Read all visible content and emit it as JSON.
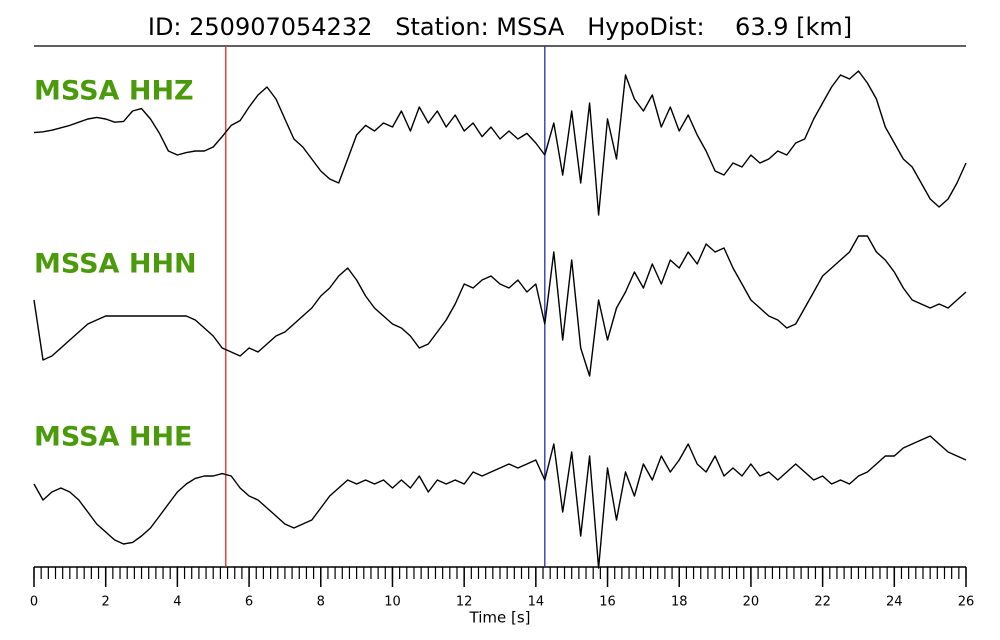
{
  "chart_data": {
    "type": "line",
    "title": "ID: 250907054232   Station: MSSA   HypoDist:    63.9 [km]",
    "xlabel": "Time [s]",
    "xlim": [
      0,
      26
    ],
    "xticks": [
      0,
      2,
      4,
      6,
      8,
      10,
      12,
      14,
      16,
      18,
      20,
      22,
      24,
      26
    ],
    "minor_tick_step": 0.2,
    "ylim": [
      -1,
      1
    ],
    "label_color": "#4a9a0c",
    "markers": [
      {
        "x": 5.35,
        "color": "#e8281e"
      },
      {
        "x": 14.25,
        "color": "#2a2ab4"
      }
    ],
    "x": [
      0,
      0.25,
      0.5,
      0.75,
      1,
      1.25,
      1.5,
      1.75,
      2,
      2.25,
      2.5,
      2.75,
      3,
      3.25,
      3.5,
      3.75,
      4,
      4.25,
      4.5,
      4.75,
      5,
      5.25,
      5.5,
      5.75,
      6,
      6.25,
      6.5,
      6.75,
      7,
      7.25,
      7.5,
      7.75,
      8,
      8.25,
      8.5,
      8.75,
      9,
      9.25,
      9.5,
      9.75,
      10,
      10.25,
      10.5,
      10.75,
      11,
      11.25,
      11.5,
      11.75,
      12,
      12.25,
      12.5,
      12.75,
      13,
      13.25,
      13.5,
      13.75,
      14,
      14.25,
      14.5,
      14.75,
      15,
      15.25,
      15.5,
      15.75,
      16,
      16.25,
      16.5,
      16.75,
      17,
      17.25,
      17.5,
      17.75,
      18,
      18.25,
      18.5,
      18.75,
      19,
      19.25,
      19.5,
      19.75,
      20,
      20.25,
      20.5,
      20.75,
      21,
      21.25,
      21.5,
      21.75,
      22,
      22.25,
      22.5,
      22.75,
      23,
      23.25,
      23.5,
      23.75,
      24,
      24.25,
      24.5,
      24.75,
      25,
      25.25,
      25.5,
      25.75,
      26
    ],
    "series": [
      {
        "name": "MSSA HHZ",
        "color": "#000000",
        "values": [
          0.03,
          0.04,
          0.06,
          0.09,
          0.12,
          0.16,
          0.2,
          0.22,
          0.2,
          0.16,
          0.17,
          0.3,
          0.33,
          0.2,
          0.02,
          -0.2,
          -0.25,
          -0.22,
          -0.2,
          -0.2,
          -0.15,
          -0.02,
          0.12,
          0.18,
          0.35,
          0.5,
          0.6,
          0.45,
          0.2,
          -0.05,
          -0.15,
          -0.3,
          -0.45,
          -0.55,
          -0.6,
          -0.3,
          0.0,
          0.12,
          0.05,
          0.15,
          0.1,
          0.3,
          0.05,
          0.35,
          0.15,
          0.3,
          0.1,
          0.25,
          0.05,
          0.15,
          -0.02,
          0.1,
          -0.05,
          0.05,
          -0.05,
          0.02,
          -0.1,
          -0.25,
          0.15,
          -0.5,
          0.3,
          -0.6,
          0.4,
          -1.0,
          0.2,
          -0.3,
          0.75,
          0.45,
          0.3,
          0.5,
          0.1,
          0.35,
          0.05,
          0.25,
          0.0,
          -0.2,
          -0.45,
          -0.5,
          -0.35,
          -0.4,
          -0.25,
          -0.35,
          -0.3,
          -0.2,
          -0.25,
          -0.1,
          -0.05,
          0.2,
          0.4,
          0.6,
          0.75,
          0.7,
          0.8,
          0.65,
          0.45,
          0.1,
          -0.1,
          -0.3,
          -0.4,
          -0.6,
          -0.8,
          -0.9,
          -0.8,
          -0.6,
          -0.35
        ]
      },
      {
        "name": "MSSA HHN",
        "color": "#000000",
        "values": [
          0.0,
          -0.75,
          -0.7,
          -0.6,
          -0.5,
          -0.4,
          -0.3,
          -0.25,
          -0.2,
          -0.2,
          -0.2,
          -0.2,
          -0.2,
          -0.2,
          -0.2,
          -0.2,
          -0.2,
          -0.2,
          -0.25,
          -0.35,
          -0.45,
          -0.6,
          -0.65,
          -0.7,
          -0.6,
          -0.65,
          -0.55,
          -0.45,
          -0.4,
          -0.3,
          -0.2,
          -0.1,
          0.05,
          0.15,
          0.3,
          0.4,
          0.25,
          0.05,
          -0.1,
          -0.2,
          -0.3,
          -0.35,
          -0.45,
          -0.6,
          -0.55,
          -0.4,
          -0.25,
          -0.05,
          0.2,
          0.15,
          0.25,
          0.3,
          0.2,
          0.15,
          0.25,
          0.1,
          0.2,
          -0.3,
          0.6,
          -0.5,
          0.5,
          -0.6,
          -0.95,
          0.0,
          -0.5,
          -0.1,
          0.1,
          0.35,
          0.15,
          0.45,
          0.2,
          0.5,
          0.4,
          0.6,
          0.45,
          0.7,
          0.6,
          0.65,
          0.4,
          0.2,
          0.0,
          -0.1,
          -0.2,
          -0.25,
          -0.35,
          -0.3,
          -0.1,
          0.1,
          0.3,
          0.4,
          0.5,
          0.6,
          0.8,
          0.8,
          0.6,
          0.5,
          0.35,
          0.15,
          0.0,
          -0.05,
          -0.1,
          -0.05,
          -0.1,
          0.0,
          0.1
        ]
      },
      {
        "name": "MSSA HHE",
        "color": "#000000",
        "values": [
          0.05,
          -0.15,
          -0.05,
          0.0,
          -0.05,
          -0.15,
          -0.3,
          -0.45,
          -0.55,
          -0.65,
          -0.7,
          -0.68,
          -0.6,
          -0.5,
          -0.35,
          -0.2,
          -0.05,
          0.05,
          0.12,
          0.15,
          0.15,
          0.18,
          0.15,
          0.0,
          -0.1,
          -0.15,
          -0.25,
          -0.35,
          -0.45,
          -0.5,
          -0.45,
          -0.4,
          -0.25,
          -0.1,
          0.0,
          0.1,
          0.05,
          0.1,
          0.05,
          0.1,
          0.0,
          0.1,
          0.0,
          0.15,
          -0.05,
          0.1,
          0.05,
          0.1,
          0.05,
          0.2,
          0.15,
          0.2,
          0.25,
          0.3,
          0.25,
          0.3,
          0.35,
          0.1,
          0.55,
          -0.3,
          0.45,
          -0.6,
          0.4,
          -1.0,
          0.25,
          -0.4,
          0.2,
          -0.1,
          0.3,
          0.1,
          0.4,
          0.2,
          0.35,
          0.55,
          0.3,
          0.2,
          0.4,
          0.15,
          0.25,
          0.15,
          0.3,
          0.15,
          0.2,
          0.1,
          0.2,
          0.3,
          0.2,
          0.1,
          0.15,
          0.05,
          0.1,
          0.05,
          0.15,
          0.2,
          0.3,
          0.4,
          0.4,
          0.5,
          0.55,
          0.6,
          0.65,
          0.55,
          0.45,
          0.4,
          0.35
        ]
      }
    ]
  }
}
